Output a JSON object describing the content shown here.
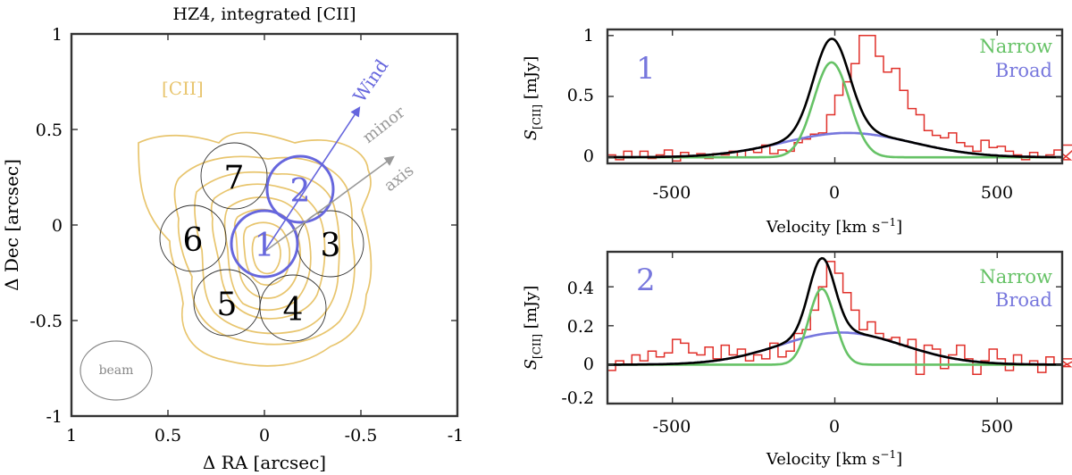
{
  "colors": {
    "cii": "#E8C56E",
    "wind": "#6666DD",
    "minor": "#999999",
    "narrow": "#66C266",
    "broad": "#7777DD",
    "data": "#E0302A",
    "fit": "#000000",
    "frame": "#333333"
  },
  "left_panel": {
    "title": "HZ4, integrated [CII]",
    "xlabel": "Δ RA [arcsec]",
    "ylabel": "Δ Dec [arcsec]",
    "xticks": [
      "1",
      "0.5",
      "0",
      "-0.5",
      "-1"
    ],
    "yticks": [
      "1",
      "0.5",
      "0",
      "-0.5",
      "-1"
    ],
    "cii_label": "[CII]",
    "wind_label": "Wind",
    "minor_label_1": "minor",
    "minor_label_2": "axis",
    "beam_label": "beam",
    "apertures": [
      "1",
      "2",
      "3",
      "4",
      "5",
      "6",
      "7"
    ]
  },
  "chart_data": [
    {
      "type": "contour",
      "title": "HZ4, integrated [CII]",
      "xlabel": "Δ RA [arcsec]",
      "ylabel": "Δ Dec [arcsec]",
      "xlim": [
        1,
        -1
      ],
      "ylim": [
        -1,
        1
      ],
      "apertures": [
        {
          "id": "1",
          "ra": 0.0,
          "dec": -0.08,
          "r": 0.17,
          "highlight": true
        },
        {
          "id": "2",
          "ra": -0.18,
          "dec": 0.2,
          "r": 0.17,
          "highlight": true
        },
        {
          "id": "3",
          "ra": -0.34,
          "dec": -0.1,
          "r": 0.17,
          "highlight": false
        },
        {
          "id": "4",
          "ra": -0.16,
          "dec": -0.43,
          "r": 0.17,
          "highlight": false
        },
        {
          "id": "5",
          "ra": 0.18,
          "dec": -0.4,
          "r": 0.17,
          "highlight": false
        },
        {
          "id": "6",
          "ra": 0.34,
          "dec": -0.07,
          "r": 0.17,
          "highlight": false
        },
        {
          "id": "7",
          "ra": 0.15,
          "dec": 0.25,
          "r": 0.17,
          "highlight": false
        }
      ],
      "wind_vector": {
        "from": [
          0.0,
          -0.08
        ],
        "to": [
          -0.43,
          0.6
        ]
      },
      "minor_axis_vector": {
        "from": [
          0.0,
          -0.08
        ],
        "to": [
          -0.66,
          0.35
        ]
      },
      "beam": {
        "ra": 0.65,
        "dec": -0.75,
        "major": 0.37,
        "minor": 0.3
      }
    },
    {
      "type": "line",
      "panel_label": "1",
      "xlabel": "Velocity [km s⁻¹]",
      "ylabel": "S[CII] [mJy]",
      "xlim": [
        -700,
        700
      ],
      "ylim": [
        -0.05,
        1.05
      ],
      "xticks": [
        "-500",
        "0",
        "500"
      ],
      "xtick_values": [
        -500,
        0,
        500
      ],
      "yticks": [
        "0",
        "0.5",
        "1"
      ],
      "ytick_values": [
        0,
        0.5,
        1
      ],
      "legend": [
        "Narrow",
        "Broad"
      ],
      "narrow": {
        "amp": 0.78,
        "center": -10,
        "sigma": 55
      },
      "broad": {
        "amp": 0.2,
        "center": 40,
        "sigma": 200
      },
      "data_step": 25,
      "data": [
        0.02,
        -0.02,
        0.05,
        0.0,
        0.05,
        -0.01,
        0.02,
        0.06,
        -0.03,
        0.04,
        0.0,
        0.03,
        -0.01,
        0.03,
        0.02,
        0.05,
        0.0,
        0.06,
        0.04,
        0.1,
        0.03,
        0.06,
        0.05,
        0.12,
        0.15,
        0.19,
        0.2,
        0.35,
        0.51,
        0.62,
        0.77,
        1.0,
        1.0,
        0.83,
        0.7,
        0.73,
        0.55,
        0.4,
        0.35,
        0.22,
        0.18,
        0.16,
        0.2,
        0.12,
        0.09,
        0.05,
        0.14,
        0.08,
        0.09,
        0.05,
        0.02,
        -0.02,
        0.04,
        0.0,
        0.02,
        0.06,
        0.03,
        -0.02,
        0.1
      ]
    },
    {
      "type": "line",
      "panel_label": "2",
      "xlabel": "Velocity [km s⁻¹]",
      "ylabel": "S[CII] [mJy]",
      "xlim": [
        -700,
        700
      ],
      "ylim": [
        -0.2,
        0.58
      ],
      "xticks": [
        "-500",
        "0",
        "500"
      ],
      "xtick_values": [
        -500,
        0,
        500
      ],
      "yticks": [
        "-0.2",
        "0",
        "0.2",
        "0.4"
      ],
      "ytick_values": [
        -0.2,
        0,
        0.2,
        0.4
      ],
      "legend": [
        "Narrow",
        "Broad"
      ],
      "narrow": {
        "amp": 0.39,
        "center": -40,
        "sigma": 40
      },
      "broad": {
        "amp": 0.165,
        "center": 20,
        "sigma": 190
      },
      "data_step": 25,
      "data": [
        -0.03,
        0.02,
        0.0,
        0.05,
        0.02,
        0.07,
        0.04,
        0.06,
        0.13,
        0.11,
        0.06,
        0.05,
        0.09,
        0.03,
        0.1,
        0.05,
        0.08,
        0.02,
        0.05,
        0.03,
        0.11,
        0.04,
        0.07,
        0.16,
        0.18,
        0.28,
        0.4,
        0.53,
        0.47,
        0.37,
        0.28,
        0.18,
        0.22,
        0.16,
        0.13,
        0.14,
        0.1,
        0.13,
        -0.05,
        0.1,
        0.08,
        -0.02,
        0.05,
        0.1,
        0.03,
        -0.05,
        0.02,
        0.08,
        0.03,
        -0.03,
        0.05,
        0.0,
        0.02,
        -0.04,
        0.04,
        0.0,
        0.02,
        -0.01,
        0.03
      ]
    }
  ],
  "spectrum_panels": {
    "p1": {
      "label": "1",
      "legend_narrow": "Narrow",
      "legend_broad": "Broad",
      "xlabel": "Velocity [km s",
      "xlabel_sup": "−1",
      "ylabel_main": "S",
      "ylabel_sub": "[CII]",
      "ylabel_unit": " [mJy]",
      "xticks": [
        "-500",
        "0",
        "500"
      ],
      "yticks": [
        "0",
        "0.5",
        "1"
      ]
    },
    "p2": {
      "label": "2",
      "legend_narrow": "Narrow",
      "legend_broad": "Broad",
      "xlabel": "Velocity [km s",
      "xlabel_sup": "−1",
      "ylabel_main": "S",
      "ylabel_sub": "[CII]",
      "ylabel_unit": " [mJy]",
      "xticks": [
        "-500",
        "0",
        "500"
      ],
      "yticks": [
        "-0.2",
        "0",
        "0.2",
        "0.4"
      ]
    }
  }
}
